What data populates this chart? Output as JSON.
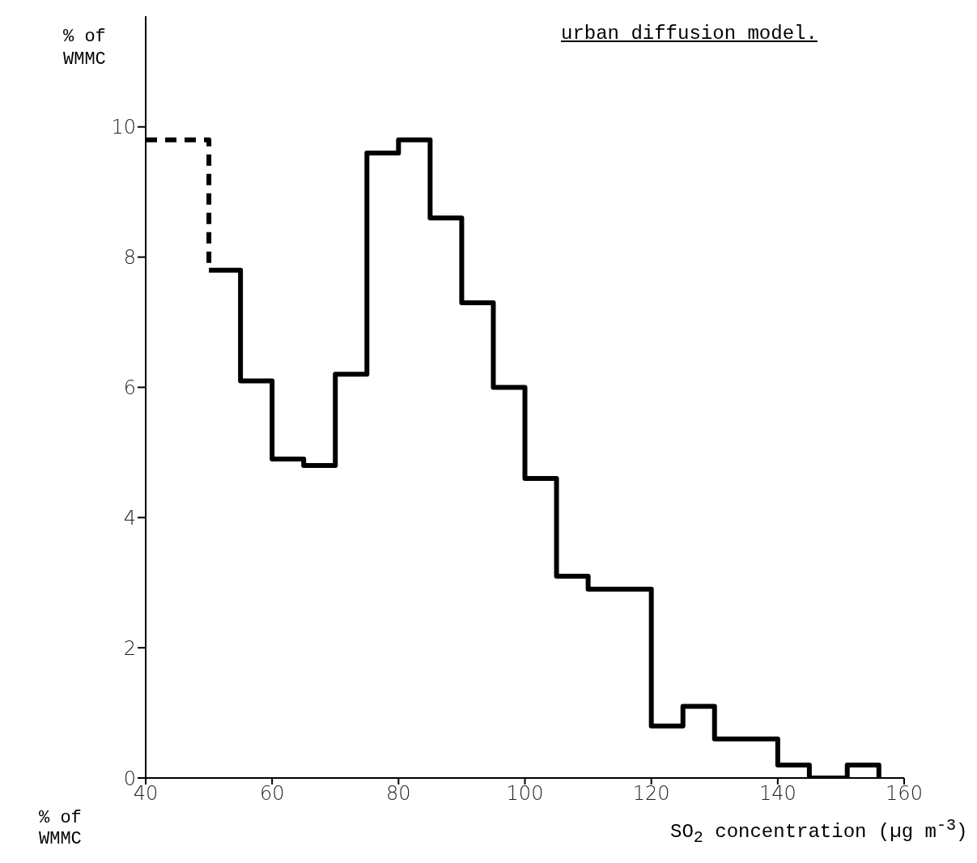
{
  "chart_data": {
    "type": "histogram",
    "title": "urban diffusion model.",
    "ylabel": "% of WMMC",
    "xlabel": "SO$_{2}$ concentration (µg m$^{-3}$)",
    "annotations": [
      "% of WMMC"
    ],
    "bins": [
      50,
      55,
      60,
      65,
      70,
      75,
      80,
      85,
      90,
      95,
      100,
      105,
      110,
      120,
      125,
      130,
      140,
      145,
      151,
      156
    ],
    "series": [
      {
        "color": "#000000",
        "line_style": "dashed",
        "bins": [
          40,
          50
        ],
        "values": [
          9.8
        ]
      },
      {
        "color": "#000000",
        "line_style": "solid",
        "values": [
          7.8,
          6.1,
          4.9,
          4.8,
          6.2,
          9.6,
          9.8,
          8.6,
          7.3,
          6.0,
          4.6,
          3.1,
          2.9,
          0.8,
          1.1,
          0.6,
          0.2,
          0,
          0.2
        ]
      }
    ],
    "xlim": [
      40,
      160
    ],
    "xticks": [
      40,
      60,
      80,
      100,
      120,
      140,
      160
    ],
    "ylim": [
      0,
      11.7
    ],
    "yticks": [
      0,
      2,
      4,
      6,
      8,
      10
    ],
    "grid": false
  }
}
